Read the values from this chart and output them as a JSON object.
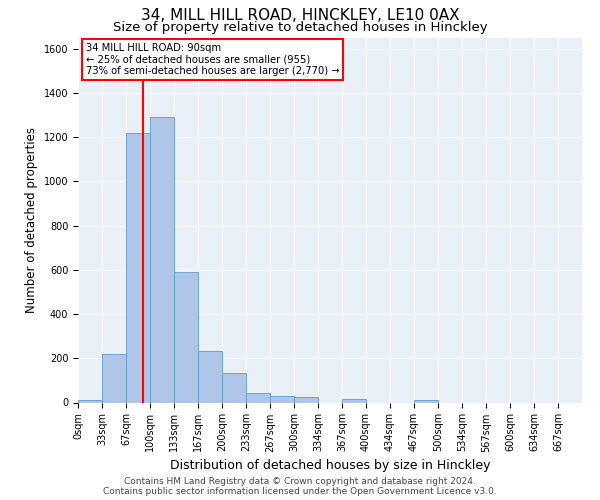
{
  "title": "34, MILL HILL ROAD, HINCKLEY, LE10 0AX",
  "subtitle": "Size of property relative to detached houses in Hinckley",
  "xlabel": "Distribution of detached houses by size in Hinckley",
  "ylabel": "Number of detached properties",
  "bin_labels": [
    "0sqm",
    "33sqm",
    "67sqm",
    "100sqm",
    "133sqm",
    "167sqm",
    "200sqm",
    "233sqm",
    "267sqm",
    "300sqm",
    "334sqm",
    "367sqm",
    "400sqm",
    "434sqm",
    "467sqm",
    "500sqm",
    "534sqm",
    "567sqm",
    "600sqm",
    "634sqm",
    "667sqm"
  ],
  "bar_values": [
    10,
    220,
    1220,
    1290,
    590,
    235,
    135,
    45,
    30,
    25,
    0,
    15,
    0,
    0,
    10,
    0,
    0,
    0,
    0,
    0,
    0
  ],
  "bar_color": "#aec6e8",
  "bar_edge_color": "#5b9bd5",
  "annotation_text": "34 MILL HILL ROAD: 90sqm\n← 25% of detached houses are smaller (955)\n73% of semi-detached houses are larger (2,770) →",
  "annotation_box_color": "white",
  "annotation_box_edge": "red",
  "ylim": [
    0,
    1650
  ],
  "yticks": [
    0,
    200,
    400,
    600,
    800,
    1000,
    1200,
    1400,
    1600
  ],
  "footer_line1": "Contains HM Land Registry data © Crown copyright and database right 2024.",
  "footer_line2": "Contains public sector information licensed under the Open Government Licence v3.0.",
  "bg_color": "#eaf0f8",
  "grid_color": "white",
  "title_fontsize": 11,
  "subtitle_fontsize": 9.5,
  "axis_label_fontsize": 8.5,
  "tick_fontsize": 7,
  "footer_fontsize": 6.5
}
